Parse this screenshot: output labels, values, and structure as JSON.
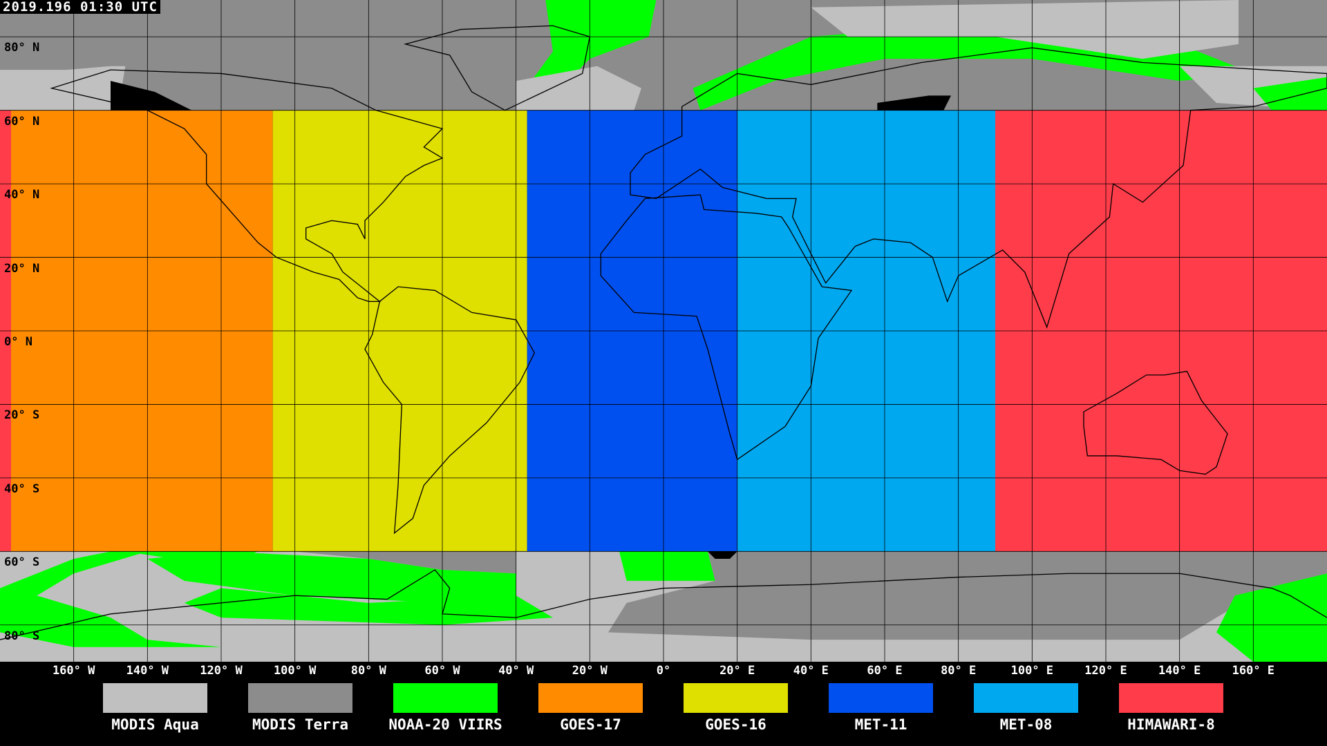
{
  "timestamp": "2019.196 01:30 UTC",
  "lat_labels": [
    {
      "lat": 80,
      "text": "80° N"
    },
    {
      "lat": 60,
      "text": "60° N"
    },
    {
      "lat": 40,
      "text": "40° N"
    },
    {
      "lat": 20,
      "text": "20° N"
    },
    {
      "lat": 0,
      "text": "0° N"
    },
    {
      "lat": -20,
      "text": "20° S"
    },
    {
      "lat": -40,
      "text": "40° S"
    },
    {
      "lat": -60,
      "text": "60° S"
    },
    {
      "lat": -80,
      "text": "80° S"
    }
  ],
  "lon_labels": [
    {
      "lon": -160,
      "text": "160° W"
    },
    {
      "lon": -140,
      "text": "140° W"
    },
    {
      "lon": -120,
      "text": "120° W"
    },
    {
      "lon": -100,
      "text": "100° W"
    },
    {
      "lon": -80,
      "text": "80° W"
    },
    {
      "lon": -60,
      "text": "60° W"
    },
    {
      "lon": -40,
      "text": "40° W"
    },
    {
      "lon": -20,
      "text": "20° W"
    },
    {
      "lon": 0,
      "text": "0°"
    },
    {
      "lon": 20,
      "text": "20° E"
    },
    {
      "lon": 40,
      "text": "40° E"
    },
    {
      "lon": 60,
      "text": "60° E"
    },
    {
      "lon": 80,
      "text": "80° E"
    },
    {
      "lon": 100,
      "text": "100° E"
    },
    {
      "lon": 120,
      "text": "120° E"
    },
    {
      "lon": 140,
      "text": "140° E"
    },
    {
      "lon": 160,
      "text": "160° E"
    }
  ],
  "legend": [
    {
      "label": "MODIS Aqua",
      "color": "#c0c0c0"
    },
    {
      "label": "MODIS Terra",
      "color": "#8c8c8c"
    },
    {
      "label": "NOAA-20 VIIRS",
      "color": "#00ff00"
    },
    {
      "label": "GOES-17",
      "color": "#ff8c00"
    },
    {
      "label": "GOES-16",
      "color": "#e0e000"
    },
    {
      "label": "MET-11",
      "color": "#0050f0"
    },
    {
      "label": "MET-08",
      "color": "#00a8f0"
    },
    {
      "label": "HIMAWARI-8",
      "color": "#ff3c4a"
    }
  ],
  "geostationary_coverage": [
    {
      "sensor": "HIMAWARI-8",
      "lon": [
        -180,
        -177
      ]
    },
    {
      "sensor": "GOES-17",
      "lon": [
        -177,
        -106
      ]
    },
    {
      "sensor": "GOES-16",
      "lon": [
        -106,
        -37
      ]
    },
    {
      "sensor": "MET-11",
      "lon": [
        -37,
        20
      ]
    },
    {
      "sensor": "MET-08",
      "lon": [
        20,
        90
      ]
    },
    {
      "sensor": "HIMAWARI-8",
      "lon": [
        90,
        180
      ]
    }
  ],
  "geostationary_lat_range": [
    -60,
    60
  ],
  "no_data_color": "#000000"
}
